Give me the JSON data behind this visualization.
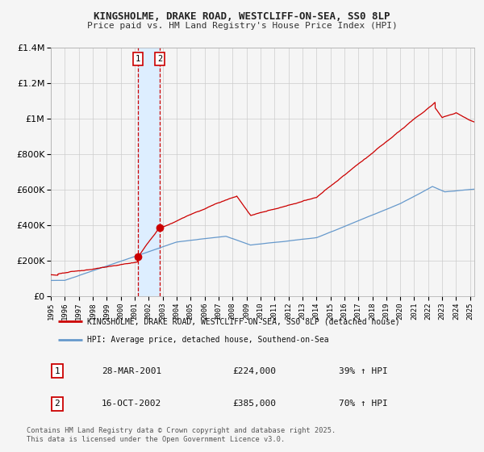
{
  "title1": "KINGSHOLME, DRAKE ROAD, WESTCLIFF-ON-SEA, SS0 8LP",
  "title2": "Price paid vs. HM Land Registry's House Price Index (HPI)",
  "legend_red": "KINGSHOLME, DRAKE ROAD, WESTCLIFF-ON-SEA, SS0 8LP (detached house)",
  "legend_blue": "HPI: Average price, detached house, Southend-on-Sea",
  "transaction1_date": "28-MAR-2001",
  "transaction1_price": "£224,000",
  "transaction1_hpi": "39% ↑ HPI",
  "transaction1_year": 2001.23,
  "transaction1_value": 224000,
  "transaction2_date": "16-OCT-2002",
  "transaction2_price": "£385,000",
  "transaction2_hpi": "70% ↑ HPI",
  "transaction2_year": 2002.79,
  "transaction2_value": 385000,
  "footer": "Contains HM Land Registry data © Crown copyright and database right 2025.\nThis data is licensed under the Open Government Licence v3.0.",
  "ylim": [
    0,
    1400000
  ],
  "xlim_start": 1995.0,
  "xlim_end": 2025.3,
  "red_color": "#cc0000",
  "blue_color": "#6699cc",
  "background_color": "#f5f5f5",
  "grid_color": "#cccccc",
  "shade_color": "#ddeeff"
}
